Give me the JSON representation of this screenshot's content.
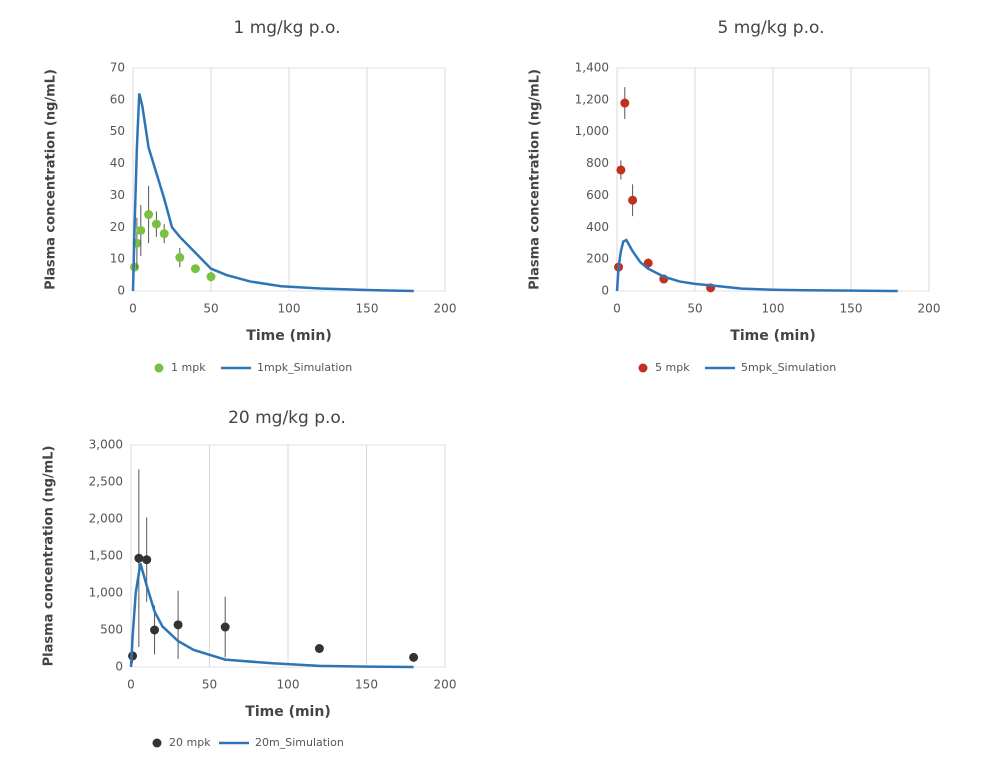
{
  "chart_data": [
    {
      "type": "scatter",
      "title": "1 mg/kg p.o.",
      "x_label": "Time (min)",
      "y_label": "Plasma concentration (ng/mL)",
      "xlim": [
        0,
        200
      ],
      "xticks": [
        0,
        50,
        100,
        150,
        200
      ],
      "ylim": [
        0,
        70
      ],
      "yticks": [
        0,
        10,
        20,
        30,
        40,
        50,
        60,
        70
      ],
      "grid": "x",
      "series": [
        {
          "name": "1 mpk",
          "type": "scatter",
          "color": "#7ac143",
          "x": [
            1,
            2.5,
            5,
            10,
            15,
            20,
            30,
            40,
            50
          ],
          "values": [
            7.5,
            15,
            19,
            24,
            21,
            18,
            10.5,
            7,
            4.5
          ],
          "errors": [
            1,
            8,
            8,
            9,
            4,
            3,
            3,
            1,
            1.5
          ]
        },
        {
          "name": "1mpk_Simulation",
          "type": "line",
          "color": "#2e75b6",
          "x": [
            0,
            1,
            2.5,
            4,
            6,
            10,
            15,
            20,
            25,
            30,
            40,
            50,
            60,
            75,
            95,
            120,
            150,
            180
          ],
          "values": [
            0,
            20,
            45,
            62,
            58,
            45,
            37,
            29,
            20,
            17,
            12,
            7,
            5,
            3,
            1.5,
            0.8,
            0.3,
            0
          ]
        }
      ]
    },
    {
      "type": "scatter",
      "title": "5 mg/kg p.o.",
      "x_label": "Time (min)",
      "y_label": "Plasma concentration (ng/mL)",
      "xlim": [
        0,
        200
      ],
      "xticks": [
        0,
        50,
        100,
        150,
        200
      ],
      "ylim": [
        0,
        1400
      ],
      "yticks": [
        0,
        200,
        400,
        600,
        800,
        {
          "value": 1000,
          "label": "1,000"
        },
        {
          "value": 1200,
          "label": "1,200"
        },
        {
          "value": 1400,
          "label": "1,400"
        }
      ],
      "grid": "x",
      "series": [
        {
          "name": "5 mpk",
          "type": "scatter",
          "color": "#c0311f",
          "x": [
            1,
            2.5,
            5,
            10,
            20,
            30,
            60
          ],
          "values": [
            150,
            760,
            1180,
            570,
            175,
            75,
            20
          ],
          "errors": [
            20,
            60,
            100,
            100,
            30,
            15,
            5
          ]
        },
        {
          "name": "5mpk_Simulation",
          "type": "line",
          "color": "#2e75b6",
          "x": [
            0,
            1,
            2.5,
            4,
            6,
            10,
            15,
            20,
            30,
            40,
            50,
            60,
            80,
            100,
            120,
            150,
            180
          ],
          "values": [
            0,
            150,
            250,
            310,
            320,
            250,
            180,
            140,
            90,
            60,
            45,
            35,
            15,
            8,
            5,
            2,
            0
          ]
        }
      ]
    },
    {
      "type": "scatter",
      "title": "20 mg/kg p.o.",
      "x_label": "Time (min)",
      "y_label": "Plasma concentration (ng/mL)",
      "xlim": [
        0,
        200
      ],
      "xticks": [
        0,
        50,
        100,
        150,
        200
      ],
      "ylim": [
        0,
        3000
      ],
      "yticks": [
        0,
        500,
        {
          "value": 1000,
          "label": "1,000"
        },
        {
          "value": 1500,
          "label": "1,500"
        },
        {
          "value": 2000,
          "label": "2,000"
        },
        {
          "value": 2500,
          "label": "2,500"
        },
        {
          "value": 3000,
          "label": "3,000"
        }
      ],
      "grid": "x",
      "series": [
        {
          "name": "20 mpk",
          "type": "scatter",
          "color": "#333333",
          "x": [
            1,
            5,
            10,
            15,
            30,
            60,
            120,
            180
          ],
          "values": [
            150,
            1470,
            1450,
            500,
            570,
            540,
            250,
            130
          ],
          "errors": [
            100,
            1200,
            570,
            330,
            460,
            410,
            50,
            50
          ]
        },
        {
          "name": "20m_Simulation",
          "type": "line",
          "color": "#2e75b6",
          "x": [
            0,
            1,
            3,
            6,
            10,
            15,
            20,
            30,
            40,
            60,
            90,
            120,
            150,
            180
          ],
          "values": [
            0,
            400,
            1000,
            1400,
            1100,
            750,
            550,
            350,
            230,
            100,
            50,
            15,
            5,
            0
          ]
        }
      ]
    }
  ]
}
